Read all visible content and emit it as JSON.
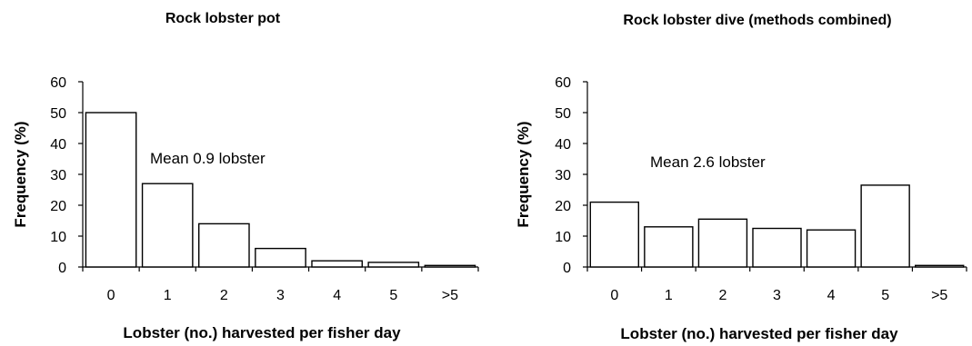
{
  "chart_data": [
    {
      "type": "bar",
      "title": "Rock lobster pot",
      "xlabel": "Lobster (no.) harvested per fisher day",
      "ylabel": "Frequency (%)",
      "categories": [
        "0",
        "1",
        "2",
        "3",
        "4",
        "5",
        ">5"
      ],
      "values": [
        50,
        27,
        14,
        6,
        2,
        1.5,
        0.5
      ],
      "ylim": [
        0,
        60
      ],
      "yticks": [
        "0",
        "10",
        "20",
        "30",
        "40",
        "50",
        "60"
      ],
      "annotation": "Mean 0.9 lobster",
      "grid": false,
      "legend": "none"
    },
    {
      "type": "bar",
      "title": "Rock lobster dive (methods combined)",
      "xlabel": "Lobster (no.) harvested per fisher day",
      "ylabel": "Frequency (%)",
      "categories": [
        "0",
        "1",
        "2",
        "3",
        "4",
        "5",
        ">5"
      ],
      "values": [
        21,
        13,
        15.5,
        12.5,
        12,
        26.5,
        0.5
      ],
      "ylim": [
        0,
        60
      ],
      "yticks": [
        "0",
        "10",
        "20",
        "30",
        "40",
        "50",
        "60"
      ],
      "annotation": "Mean 2.6 lobster",
      "grid": false,
      "legend": "none"
    }
  ]
}
